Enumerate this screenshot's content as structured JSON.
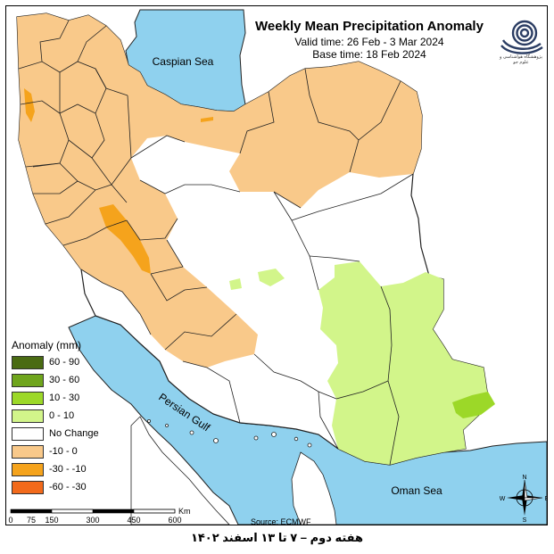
{
  "title": "Weekly Mean Precipitation Anomaly",
  "valid_time": "Valid time:  26 Feb - 3 Mar 2024",
  "base_time": "Base time: 18 Feb 2024",
  "logo_text": "پژوهشگاه هواشناسی و علوم جو",
  "labels": {
    "caspian": "Caspian Sea",
    "persian_gulf": "Persian Gulf",
    "oman_sea": "Oman Sea"
  },
  "legend": {
    "title": "Anomaly (mm)",
    "items": [
      {
        "label": "60 - 90",
        "color": "#4a6b12"
      },
      {
        "label": "30 - 60",
        "color": "#6fa51c"
      },
      {
        "label": "10 - 30",
        "color": "#9cd828"
      },
      {
        "label": "0 - 10",
        "color": "#d2f58a"
      },
      {
        "label": "No Change",
        "color": "#ffffff"
      },
      {
        "label": "-10 - 0",
        "color": "#f9c98a"
      },
      {
        "label": "-30 - -10",
        "color": "#f5a31c"
      },
      {
        "label": "-60 - -30",
        "color": "#f26a1b"
      }
    ]
  },
  "scale_bar": {
    "ticks": [
      "0",
      "75",
      "150",
      "300",
      "450",
      "600"
    ],
    "unit": "Km"
  },
  "source": "Source: ECMWF",
  "compass": {
    "n": "N",
    "s": "S",
    "e": "E",
    "w": "W"
  },
  "caption": "هفته دوم – ۷ تا ۱۳ اسفند ۱۴۰۲",
  "colors": {
    "sea": "#8fd1ee",
    "border": "#222222"
  }
}
